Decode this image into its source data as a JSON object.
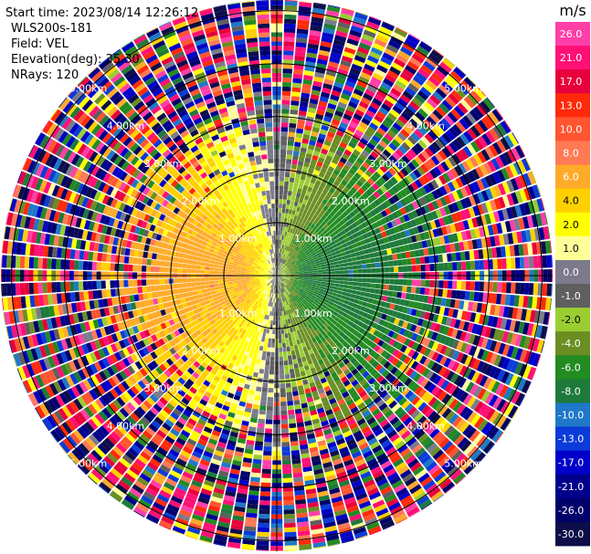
{
  "info": {
    "start_time": "Start time: 2023/08/14 12:26:12",
    "instrument": "WLS200s-181",
    "field": "Field: VEL",
    "elevation": "Elevation(deg): 35.30",
    "nrays": "NRays: 120"
  },
  "colorbar": {
    "unit": "m/s",
    "ticks": [
      "26.0",
      "21.0",
      "17.0",
      "13.0",
      "10.0",
      "8.0",
      "6.0",
      "4.0",
      "2.0",
      "1.0",
      "0.0",
      "-1.0",
      "-2.0",
      "-4.0",
      "-6.0",
      "-8.0",
      "-10.0",
      "-13.0",
      "-17.0",
      "-21.0",
      "-26.0",
      "-30.0"
    ],
    "colors": [
      "#ff3fa8",
      "#ff1075",
      "#e8003c",
      "#ff2a0a",
      "#ff5530",
      "#ff7a55",
      "#ffab2a",
      "#ffd000",
      "#ffff00",
      "#ffff9a",
      "#7b7b8c",
      "#5f5f5f",
      "#9acd32",
      "#6b8e23",
      "#228b22",
      "#1e7a3a",
      "#1f78c8",
      "#0b3bd8",
      "#0000c8",
      "#00008c",
      "#00006a",
      "#0d0d4a"
    ]
  },
  "chart_data": {
    "type": "heatmap",
    "projection": "polar-ppi",
    "nrays": 120,
    "field": "VEL",
    "unit": "m/s",
    "range_rings_km": [
      {
        "value": 1.0,
        "label": "1.00km"
      },
      {
        "value": 2.0,
        "label": "2.00km"
      },
      {
        "value": 3.0,
        "label": "3.00km"
      },
      {
        "value": 4.0,
        "label": "4.00km"
      },
      {
        "value": 5.0,
        "label": "5.00km"
      }
    ],
    "max_range_km": 5.2,
    "color_scale": [
      -30,
      -26,
      -21,
      -17,
      -13,
      -10,
      -8,
      -6,
      -4,
      -2,
      -1,
      0,
      1,
      2,
      4,
      6,
      8,
      10,
      13,
      17,
      21,
      26
    ],
    "velocity_pattern": {
      "clean_range_km": 1.9,
      "transition_range_km": 3.5,
      "receding_azimuth_deg": 90,
      "peak_speed_mps": 7,
      "shear_core_km": 0.6
    }
  }
}
